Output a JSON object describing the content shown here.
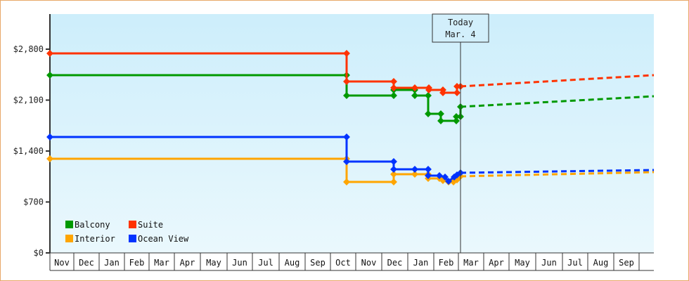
{
  "chart_data": {
    "type": "line",
    "title": "",
    "xlabel": "",
    "ylabel": "",
    "ylim": [
      0,
      3150
    ],
    "yticks": [
      "$0",
      "$700",
      "$1,400",
      "$2,100",
      "$2,800"
    ],
    "ytick_values": [
      0,
      700,
      1400,
      2100,
      2800
    ],
    "x_categories": [
      "Nov",
      "Dec",
      "Jan",
      "Feb",
      "Mar",
      "Apr",
      "May",
      "Jun",
      "Jul",
      "Aug",
      "Sep",
      "Oct",
      "Nov",
      "Dec",
      "Jan",
      "Feb",
      "Mar",
      "Apr",
      "May",
      "Jun",
      "Jul",
      "Aug",
      "Sep"
    ],
    "grid": false,
    "legend_position": "bottom-left inside",
    "annotation": {
      "label_line1": "Today",
      "label_line2": "Mar. 4"
    },
    "series": [
      {
        "name": "Balcony",
        "color": "#009900",
        "style": "step",
        "values_history": [
          2440,
          2440,
          2160,
          2160,
          2240,
          2240,
          2160,
          1900,
          1810,
          1870,
          2010
        ],
        "forecast_end": 2160
      },
      {
        "name": "Suite",
        "color": "#ff3300",
        "style": "step",
        "values_history": [
          2750,
          2750,
          2360,
          2360,
          2280,
          2280,
          2240,
          2200,
          2280
        ],
        "forecast_end": 2450
      },
      {
        "name": "Interior",
        "color": "#ffa500",
        "style": "step",
        "values_history": [
          1290,
          1290,
          970,
          970,
          1080,
          1080,
          1030,
          1000,
          960,
          990,
          1060
        ],
        "forecast_end": 1110
      },
      {
        "name": "Ocean View",
        "color": "#0033ff",
        "style": "step",
        "values_history": [
          1590,
          1590,
          1250,
          1250,
          1150,
          1150,
          1060,
          1040,
          980,
          1060,
          1100
        ],
        "forecast_end": 1140
      }
    ]
  },
  "legend": [
    {
      "label": "Balcony",
      "color": "#009900"
    },
    {
      "label": "Suite",
      "color": "#ff3300"
    },
    {
      "label": "Interior",
      "color": "#ffa500"
    },
    {
      "label": "Ocean View",
      "color": "#0033ff"
    }
  ],
  "today": {
    "line1": "Today",
    "line2": "Mar. 4"
  },
  "yaxis": {
    "labels": [
      "$2,800",
      "$2,100",
      "$1,400",
      "$700",
      "$0"
    ]
  },
  "xaxis": {
    "months": [
      "Nov",
      "Dec",
      "Jan",
      "Feb",
      "Mar",
      "Apr",
      "May",
      "Jun",
      "Jul",
      "Aug",
      "Sep",
      "Oct",
      "Nov",
      "Dec",
      "Jan",
      "Feb",
      "Mar",
      "Apr",
      "May",
      "Jun",
      "Jul",
      "Aug",
      "Sep"
    ]
  },
  "plot": {
    "series_paths": {
      "suite": "71,76 493,76 493,116 560,116 560,125 590,125 610,125 610,128 630,128 630,132 650,132 650,123 655,123",
      "suite_forecast": "655,123 930,107",
      "balcony": "71,107 493,107 493,136 560,136 560,128 590,128 590,136 609,136 609,162 627,162 627,172 649,172 649,166 655,166 655,152",
      "balcony_forecast": "655,152 930,137",
      "ocean": "71,195 493,195 493,230 560,230 560,241 590,241 609,241 609,250 625,250 633,252 638,258 646,252 650,249 655,246",
      "ocean_forecast": "655,246 930,242",
      "interior": "71,226 493,226 493,259 560,259 560,248 590,248 609,248 609,254 625,254 630,257 638,259 645,259 650,256 655,251",
      "interior_forecast": "655,251 930,245"
    }
  }
}
